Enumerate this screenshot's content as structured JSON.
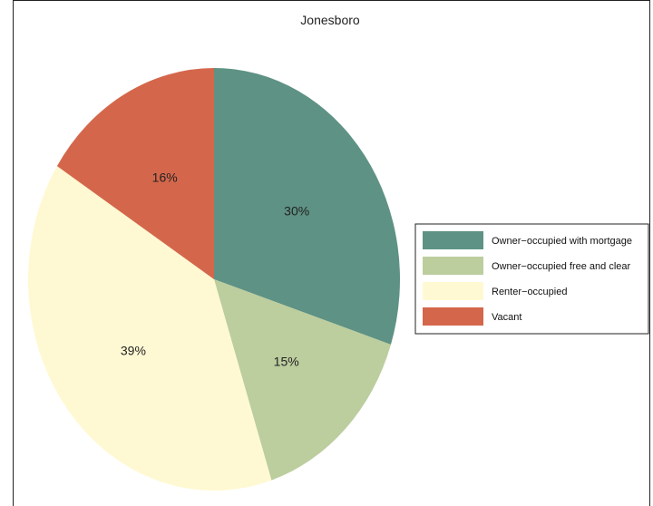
{
  "chart_data": {
    "type": "pie",
    "title": "Jonesboro",
    "slices": [
      {
        "name": "Owner−occupied with mortgage",
        "value": 30,
        "label": "30%",
        "color": "#5e9284"
      },
      {
        "name": "Owner−occupied free and clear",
        "value": 15,
        "label": "15%",
        "color": "#bccd9e"
      },
      {
        "name": "Renter−occupied",
        "value": 39,
        "label": "39%",
        "color": "#fff9d3"
      },
      {
        "name": "Vacant",
        "value": 16,
        "label": "16%",
        "color": "#d4674b"
      }
    ],
    "legend_position": "right",
    "start_angle": "12 o'clock",
    "direction": "clockwise"
  }
}
